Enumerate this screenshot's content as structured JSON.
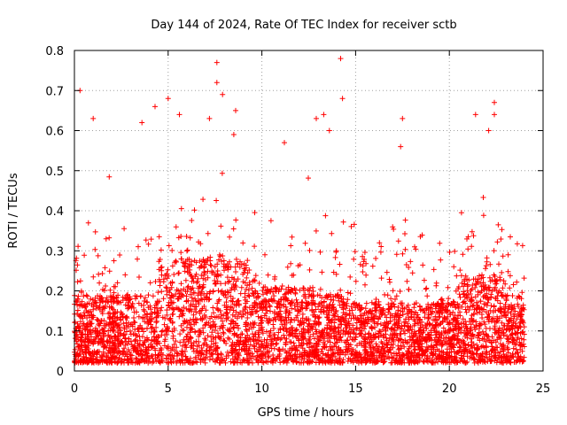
{
  "chart_data": {
    "type": "scatter",
    "title": "Day 144 of 2024, Rate Of TEC Index for receiver sctb",
    "xlabel": "GPS time / hours",
    "ylabel": "ROTI / TECUs",
    "xlim": [
      0,
      25
    ],
    "ylim": [
      0,
      0.8
    ],
    "x_ticks": [
      0,
      5,
      10,
      15,
      20,
      25
    ],
    "x_tick_labels": [
      "0",
      "5",
      "10",
      "15",
      "20",
      "25"
    ],
    "y_ticks": [
      0,
      0.1,
      0.2,
      0.3,
      0.4,
      0.5,
      0.6,
      0.7,
      0.8
    ],
    "y_tick_labels": [
      "0",
      "0.1",
      "0.2",
      "0.3",
      "0.4",
      "0.5",
      "0.6",
      "0.7",
      "0.8"
    ],
    "grid": true,
    "marker": "+",
    "color": "#ff0000",
    "series": [
      {
        "name": "ROTI",
        "x_range": [
          0,
          24
        ],
        "typical_range": [
          0.02,
          0.25
        ],
        "outliers": [
          {
            "x": 0.3,
            "y": 0.7
          },
          {
            "x": 1.0,
            "y": 0.63
          },
          {
            "x": 3.6,
            "y": 0.62
          },
          {
            "x": 4.3,
            "y": 0.66
          },
          {
            "x": 5.0,
            "y": 0.68
          },
          {
            "x": 5.6,
            "y": 0.64
          },
          {
            "x": 7.2,
            "y": 0.63
          },
          {
            "x": 7.6,
            "y": 0.77
          },
          {
            "x": 7.6,
            "y": 0.72
          },
          {
            "x": 7.9,
            "y": 0.69
          },
          {
            "x": 8.6,
            "y": 0.65
          },
          {
            "x": 8.5,
            "y": 0.59
          },
          {
            "x": 11.2,
            "y": 0.57
          },
          {
            "x": 12.9,
            "y": 0.63
          },
          {
            "x": 13.3,
            "y": 0.64
          },
          {
            "x": 13.6,
            "y": 0.6
          },
          {
            "x": 14.2,
            "y": 0.78
          },
          {
            "x": 14.3,
            "y": 0.68
          },
          {
            "x": 17.5,
            "y": 0.63
          },
          {
            "x": 17.4,
            "y": 0.56
          },
          {
            "x": 21.4,
            "y": 0.64
          },
          {
            "x": 22.4,
            "y": 0.67
          },
          {
            "x": 22.4,
            "y": 0.64
          },
          {
            "x": 22.1,
            "y": 0.6
          }
        ]
      }
    ]
  }
}
